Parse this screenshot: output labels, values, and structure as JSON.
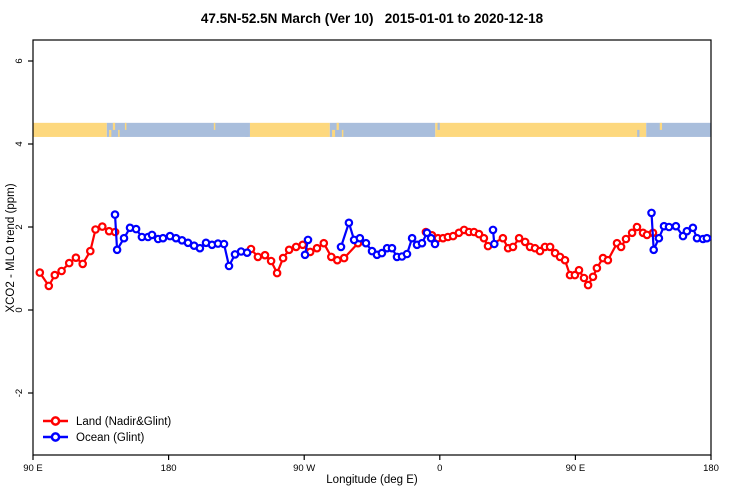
{
  "header": {
    "title": "47.5N-52.5N March (Ver 10)   2015-01-01 to 2020-12-18"
  },
  "legend": {
    "items": [
      {
        "label": "Land (Nadir&Glint)",
        "color": "#FF0000"
      },
      {
        "label": "Ocean (Glint)",
        "color": "#0000FF"
      }
    ]
  },
  "chart_data": {
    "type": "line",
    "title": "47.5N-52.5N March (Ver 10)   2015-01-01 to 2020-12-18",
    "xlabel": "Longitude (deg E)",
    "ylabel": "XCO2 - MLO trend (ppm)",
    "x_axis": {
      "range": [
        90,
        540
      ],
      "ticks": [
        90,
        180,
        270,
        360,
        450,
        540
      ],
      "tick_labels": [
        "90 E",
        "180",
        "90 W",
        "0",
        "90 E",
        "180"
      ]
    },
    "y_axis": {
      "range": [
        -3.5,
        6.5
      ],
      "ticks": [
        -2,
        0,
        2,
        4,
        6
      ],
      "tick_labels": [
        "-2",
        "0",
        "2",
        "4",
        "6"
      ]
    },
    "grid": "off",
    "legend_position": "bottom-left",
    "surface_band": {
      "y_range_ppm": [
        4.17,
        4.51
      ],
      "colors": {
        "land": "#FDD87E",
        "ocean": "#A9BEDC"
      },
      "segments": [
        {
          "from": 90,
          "to": 139,
          "type": "land"
        },
        {
          "from": 139,
          "to": 234,
          "type": "ocean"
        },
        {
          "from": 234,
          "to": 287,
          "type": "land"
        },
        {
          "from": 287,
          "to": 357,
          "type": "ocean"
        },
        {
          "from": 357,
          "to": 497,
          "type": "land"
        },
        {
          "from": 497,
          "to": 540,
          "type": "ocean"
        }
      ],
      "speckles": [
        {
          "u": 140.5,
          "w": 1.5,
          "type": "land",
          "part": "bottom"
        },
        {
          "u": 143.0,
          "w": 1.5,
          "type": "land",
          "part": "top"
        },
        {
          "u": 146.5,
          "w": 1.0,
          "type": "land",
          "part": "bottom"
        },
        {
          "u": 151.0,
          "w": 1.0,
          "type": "land",
          "part": "top"
        },
        {
          "u": 210.0,
          "w": 1.0,
          "type": "land",
          "part": "top"
        },
        {
          "u": 231.0,
          "w": 1.5,
          "type": "ocean",
          "part": "bottom"
        },
        {
          "u": 288.5,
          "w": 2.0,
          "type": "land",
          "part": "bottom"
        },
        {
          "u": 291.5,
          "w": 1.5,
          "type": "land",
          "part": "top"
        },
        {
          "u": 295.0,
          "w": 1.0,
          "type": "land",
          "part": "bottom"
        },
        {
          "u": 354.0,
          "w": 2.0,
          "type": "ocean",
          "part": "bottom"
        },
        {
          "u": 358.5,
          "w": 1.5,
          "type": "ocean",
          "part": "top"
        },
        {
          "u": 491.0,
          "w": 1.5,
          "type": "ocean",
          "part": "bottom"
        },
        {
          "u": 506.0,
          "w": 1.5,
          "type": "land",
          "part": "top"
        }
      ]
    },
    "series": [
      {
        "name": "Land (Nadir&Glint)",
        "color": "#FF0000",
        "marker": "open-circle",
        "segments": [
          [
            [
              94.5,
              0.9
            ],
            [
              100.5,
              0.58
            ],
            [
              104.5,
              0.84
            ],
            [
              109,
              0.94
            ],
            [
              114,
              1.13
            ],
            [
              118.5,
              1.26
            ],
            [
              123,
              1.11
            ],
            [
              128,
              1.42
            ],
            [
              131.5,
              1.94
            ],
            [
              136,
              2.01
            ],
            [
              140.5,
              1.9
            ],
            [
              144.5,
              1.88
            ]
          ],
          [
            [
              234.7,
              1.47
            ],
            [
              239.3,
              1.28
            ],
            [
              244,
              1.32
            ],
            [
              248,
              1.18
            ],
            [
              252,
              0.89
            ],
            [
              256,
              1.25
            ],
            [
              260,
              1.45
            ],
            [
              264.6,
              1.52
            ],
            [
              269,
              1.57
            ],
            [
              274,
              1.4
            ],
            [
              278.5,
              1.49
            ],
            [
              283,
              1.61
            ],
            [
              288,
              1.28
            ],
            [
              292,
              1.2
            ],
            [
              296.5,
              1.25
            ],
            [
              305.7,
              1.61
            ]
          ],
          [
            [
              350.8,
              1.88
            ],
            [
              354.8,
              1.8
            ],
            [
              358.8,
              1.73
            ],
            [
              362.1,
              1.73
            ],
            [
              365.4,
              1.76
            ],
            [
              368.8,
              1.78
            ],
            [
              372.7,
              1.86
            ],
            [
              376.1,
              1.93
            ],
            [
              379.4,
              1.88
            ],
            [
              382.7,
              1.88
            ],
            [
              386.0,
              1.83
            ],
            [
              389.3,
              1.73
            ],
            [
              392.0,
              1.54
            ],
            [
              401.9,
              1.73
            ],
            [
              405.3,
              1.49
            ],
            [
              408.6,
              1.52
            ],
            [
              412.6,
              1.73
            ],
            [
              416.6,
              1.64
            ],
            [
              419.9,
              1.52
            ],
            [
              423.2,
              1.49
            ],
            [
              426.5,
              1.42
            ],
            [
              429.8,
              1.52
            ],
            [
              433.2,
              1.52
            ],
            [
              436.5,
              1.37
            ],
            [
              439.8,
              1.28
            ],
            [
              443.1,
              1.2
            ],
            [
              446.4,
              0.84
            ],
            [
              449.7,
              0.84
            ],
            [
              452.4,
              0.96
            ],
            [
              455.7,
              0.77
            ],
            [
              458.4,
              0.6
            ],
            [
              461.7,
              0.8
            ],
            [
              464.3,
              1.01
            ],
            [
              468.3,
              1.25
            ],
            [
              471.6,
              1.2
            ],
            [
              477.6,
              1.61
            ],
            [
              480.3,
              1.52
            ],
            [
              483.6,
              1.71
            ],
            [
              487.6,
              1.86
            ],
            [
              490.9,
              2.0
            ],
            [
              494.9,
              1.86
            ],
            [
              497.5,
              1.81
            ],
            [
              501.5,
              1.86
            ]
          ]
        ]
      },
      {
        "name": "Ocean (Glint)",
        "color": "#0000FF",
        "marker": "open-circle",
        "segments": [
          [
            [
              144.4,
              2.3
            ],
            [
              145.8,
              1.45
            ],
            [
              150.4,
              1.73
            ],
            [
              154.4,
              1.98
            ],
            [
              158.4,
              1.95
            ],
            [
              162.3,
              1.76
            ],
            [
              166.3,
              1.76
            ],
            [
              169,
              1.81
            ],
            [
              173,
              1.71
            ],
            [
              176.3,
              1.73
            ],
            [
              180.9,
              1.78
            ],
            [
              184.9,
              1.73
            ],
            [
              188.9,
              1.68
            ],
            [
              192.9,
              1.62
            ],
            [
              196.9,
              1.55
            ],
            [
              200.8,
              1.49
            ],
            [
              204.8,
              1.62
            ],
            [
              208.8,
              1.57
            ],
            [
              212.8,
              1.6
            ],
            [
              216.8,
              1.59
            ],
            [
              220.1,
              1.06
            ],
            [
              224.1,
              1.34
            ],
            [
              228.1,
              1.41
            ],
            [
              232.1,
              1.38
            ]
          ],
          [
            [
              270.5,
              1.33
            ],
            [
              272.5,
              1.69
            ]
          ],
          [
            [
              294.4,
              1.52
            ],
            [
              299.7,
              2.1
            ],
            [
              303.1,
              1.69
            ],
            [
              307,
              1.73
            ],
            [
              311,
              1.61
            ],
            [
              315,
              1.42
            ],
            [
              318.3,
              1.33
            ],
            [
              321.6,
              1.37
            ],
            [
              325,
              1.49
            ],
            [
              328.3,
              1.49
            ],
            [
              331.6,
              1.28
            ],
            [
              334.9,
              1.29
            ],
            [
              338.2,
              1.35
            ],
            [
              341.6,
              1.73
            ],
            [
              344.9,
              1.57
            ],
            [
              348.2,
              1.61
            ],
            [
              351.5,
              1.86
            ],
            [
              354.2,
              1.73
            ],
            [
              356.8,
              1.59
            ]
          ],
          [
            [
              395.3,
              1.93
            ],
            [
              396.2,
              1.59
            ]
          ],
          [
            [
              500.5,
              2.34
            ],
            [
              502,
              1.45
            ],
            [
              505.4,
              1.73
            ],
            [
              508.8,
              2.02
            ],
            [
              512.1,
              2.0
            ],
            [
              516.7,
              2.02
            ],
            [
              521.4,
              1.78
            ],
            [
              524,
              1.9
            ],
            [
              528,
              1.98
            ],
            [
              530.7,
              1.73
            ],
            [
              534.7,
              1.71
            ],
            [
              537.3,
              1.73
            ]
          ]
        ]
      }
    ]
  }
}
